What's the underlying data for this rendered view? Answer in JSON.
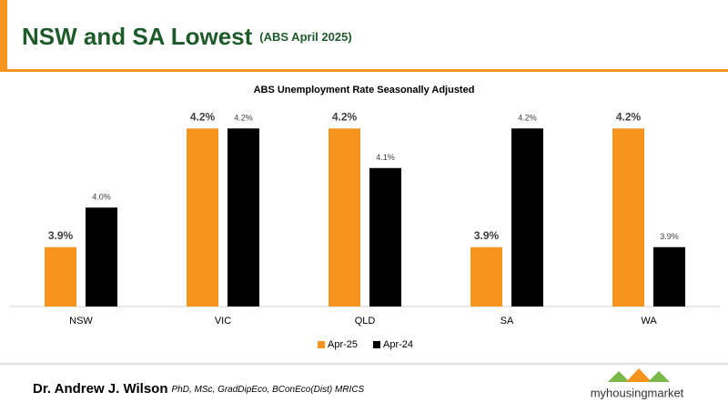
{
  "header": {
    "title": "NSW and SA Lowest",
    "subtitle": "(ABS April 2025)"
  },
  "chart_data": {
    "type": "bar",
    "title": "ABS Unemployment Rate Seasonally Adjusted",
    "categories": [
      "NSW",
      "VIC",
      "QLD",
      "SA",
      "WA"
    ],
    "series": [
      {
        "name": "Apr-25",
        "color": "#f7941d",
        "values": [
          3.9,
          4.2,
          4.2,
          3.9,
          4.2
        ],
        "value_labels": [
          "3.9%",
          "4.2%",
          "4.2%",
          "3.9%",
          "4.2%"
        ]
      },
      {
        "name": "Apr-24",
        "color": "#000000",
        "values": [
          4.0,
          4.2,
          4.1,
          4.2,
          3.9
        ],
        "value_labels": [
          "4.0%",
          "4.2%",
          "4.1%",
          "4.2%",
          "3.9%"
        ]
      }
    ],
    "ylim": [
      3.75,
      4.25
    ],
    "legend": "bottom"
  },
  "footer": {
    "author": "Dr. Andrew J. Wilson",
    "credentials": "PhD, MSc, GradDipEco, BConEco(Dist) MRICS",
    "logo": "myhousingmarket"
  }
}
